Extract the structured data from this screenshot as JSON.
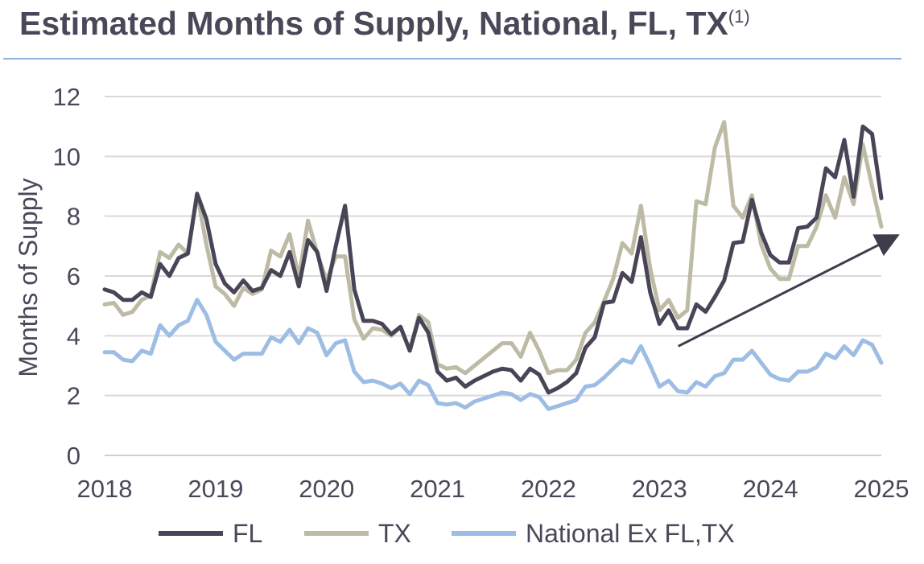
{
  "title": "Estimated Months of Supply, National, FL, TX",
  "title_footnote": "(1)",
  "chart_data": {
    "type": "line",
    "title": "Estimated Months of Supply, National, FL, TX",
    "xlabel": "",
    "ylabel": "Months of Supply",
    "xlim": [
      2018,
      2025
    ],
    "ylim": [
      0,
      12
    ],
    "yticks": [
      "0",
      "2",
      "4",
      "6",
      "8",
      "10",
      "12"
    ],
    "xticks": [
      "2018",
      "2019",
      "2020",
      "2021",
      "2022",
      "2023",
      "2024",
      "2025"
    ],
    "grid": true,
    "legend_position": "bottom",
    "colors": {
      "FL": "#474556",
      "TX": "#bdbaa5",
      "National Ex FL,TX": "#9dbde4",
      "arrow": "#3f3d4c"
    },
    "series": [
      {
        "name": "FL",
        "values": [
          5.55,
          5.45,
          5.2,
          5.2,
          5.45,
          5.3,
          6.4,
          6.0,
          6.6,
          6.75,
          8.75,
          7.9,
          6.4,
          5.75,
          5.45,
          5.85,
          5.5,
          5.6,
          6.2,
          6.0,
          6.8,
          5.65,
          7.2,
          6.8,
          5.5,
          7.0,
          8.35,
          5.55,
          4.5,
          4.5,
          4.4,
          4.05,
          4.3,
          3.5,
          4.6,
          4.1,
          2.8,
          2.5,
          2.6,
          2.3,
          2.5,
          2.65,
          2.8,
          2.9,
          2.85,
          2.5,
          2.9,
          2.7,
          2.1,
          2.25,
          2.45,
          2.75,
          3.6,
          3.95,
          5.1,
          5.15,
          6.1,
          5.8,
          7.3,
          5.45,
          4.4,
          4.85,
          4.25,
          4.25,
          5.05,
          4.8,
          5.3,
          5.85,
          7.1,
          7.15,
          8.55,
          7.45,
          6.7,
          6.45,
          6.45,
          7.6,
          7.65,
          7.95,
          9.6,
          9.3,
          10.55,
          8.65,
          11.0,
          10.75,
          8.6
        ]
      },
      {
        "name": "TX",
        "values": [
          5.05,
          5.1,
          4.7,
          4.8,
          5.2,
          5.35,
          6.8,
          6.6,
          7.05,
          6.75,
          8.75,
          7.05,
          5.65,
          5.4,
          5.0,
          5.6,
          5.4,
          5.55,
          6.85,
          6.65,
          7.4,
          5.95,
          7.85,
          6.75,
          5.85,
          6.65,
          6.65,
          4.55,
          3.9,
          4.25,
          4.2,
          4.0,
          4.3,
          3.5,
          4.7,
          4.45,
          3.05,
          2.9,
          2.95,
          2.75,
          3.0,
          3.25,
          3.5,
          3.75,
          3.75,
          3.3,
          4.1,
          3.5,
          2.75,
          2.85,
          2.85,
          3.2,
          4.1,
          4.45,
          5.15,
          5.9,
          7.1,
          6.75,
          8.35,
          6.25,
          4.85,
          5.2,
          4.6,
          4.85,
          8.5,
          8.4,
          10.3,
          11.15,
          8.35,
          7.95,
          8.7,
          7.05,
          6.25,
          5.9,
          5.9,
          7.0,
          7.0,
          7.65,
          8.7,
          7.95,
          9.3,
          8.4,
          10.4,
          9.0,
          7.65
        ]
      },
      {
        "name": "National Ex FL,TX",
        "values": [
          3.45,
          3.45,
          3.2,
          3.15,
          3.5,
          3.4,
          4.35,
          4.0,
          4.35,
          4.5,
          5.2,
          4.7,
          3.8,
          3.5,
          3.2,
          3.4,
          3.4,
          3.4,
          3.95,
          3.8,
          4.2,
          3.75,
          4.25,
          4.1,
          3.35,
          3.75,
          3.85,
          2.8,
          2.45,
          2.5,
          2.4,
          2.25,
          2.4,
          2.05,
          2.5,
          2.35,
          1.75,
          1.7,
          1.75,
          1.6,
          1.8,
          1.9,
          2.0,
          2.1,
          2.05,
          1.85,
          2.05,
          1.95,
          1.55,
          1.65,
          1.75,
          1.85,
          2.3,
          2.35,
          2.6,
          2.9,
          3.2,
          3.1,
          3.65,
          3.0,
          2.3,
          2.5,
          2.15,
          2.1,
          2.45,
          2.3,
          2.65,
          2.75,
          3.2,
          3.2,
          3.5,
          3.1,
          2.7,
          2.55,
          2.5,
          2.8,
          2.8,
          2.95,
          3.4,
          3.25,
          3.65,
          3.35,
          3.85,
          3.7,
          3.1
        ]
      }
    ],
    "annotations": [
      {
        "type": "arrow",
        "from": [
          2023.17,
          3.65
        ],
        "to": [
          2025.17,
          7.4
        ],
        "description": "upward trend arrow"
      }
    ]
  }
}
